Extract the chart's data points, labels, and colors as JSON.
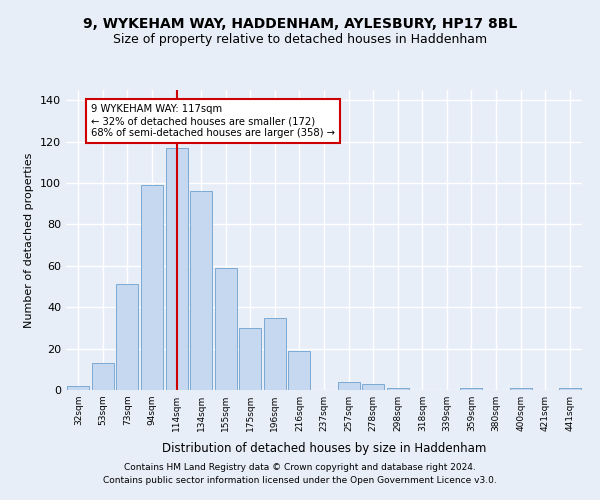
{
  "title1": "9, WYKEHAM WAY, HADDENHAM, AYLESBURY, HP17 8BL",
  "title2": "Size of property relative to detached houses in Haddenham",
  "xlabel": "Distribution of detached houses by size in Haddenham",
  "ylabel": "Number of detached properties",
  "categories": [
    "32sqm",
    "53sqm",
    "73sqm",
    "94sqm",
    "114sqm",
    "134sqm",
    "155sqm",
    "175sqm",
    "196sqm",
    "216sqm",
    "237sqm",
    "257sqm",
    "278sqm",
    "298sqm",
    "318sqm",
    "339sqm",
    "359sqm",
    "380sqm",
    "400sqm",
    "421sqm",
    "441sqm"
  ],
  "values": [
    2,
    13,
    51,
    99,
    117,
    96,
    59,
    30,
    35,
    19,
    0,
    4,
    3,
    1,
    0,
    0,
    1,
    0,
    1,
    0,
    1
  ],
  "bar_color": "#c5d8f0",
  "bar_edge_color": "#7baad4",
  "property_line_x": 4,
  "property_line_label": "9 WYKEHAM WAY: 117sqm",
  "annotation_line1": "← 32% of detached houses are smaller (172)",
  "annotation_line2": "68% of semi-detached houses are larger (358) →",
  "annotation_box_color": "#ffffff",
  "annotation_box_edge": "#cc0000",
  "vline_color": "#cc0000",
  "ylim": [
    0,
    145
  ],
  "footer1": "Contains HM Land Registry data © Crown copyright and database right 2024.",
  "footer2": "Contains public sector information licensed under the Open Government Licence v3.0.",
  "bg_color": "#e8eef8",
  "grid_color": "#ffffff",
  "title1_fontsize": 10,
  "title2_fontsize": 9,
  "xlabel_fontsize": 8.5,
  "ylabel_fontsize": 8
}
